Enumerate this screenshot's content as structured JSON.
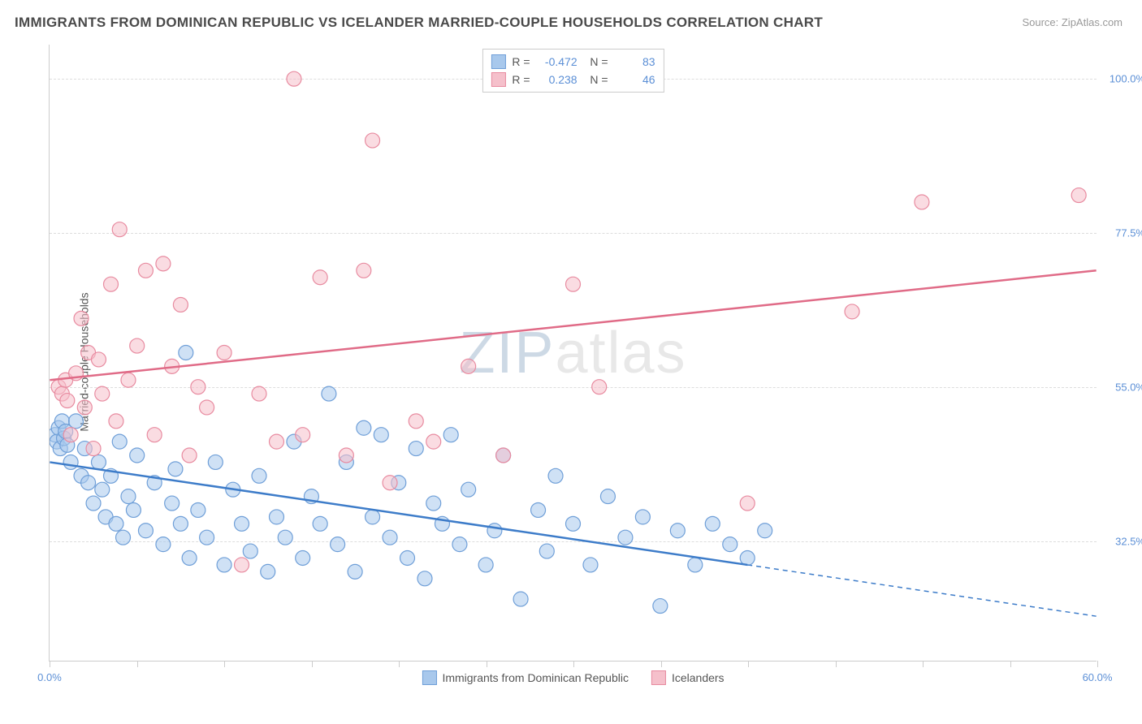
{
  "title": "IMMIGRANTS FROM DOMINICAN REPUBLIC VS ICELANDER MARRIED-COUPLE HOUSEHOLDS CORRELATION CHART",
  "source": "Source: ZipAtlas.com",
  "watermark_a": "ZIP",
  "watermark_b": "atlas",
  "ylabel": "Married-couple Households",
  "chart": {
    "type": "scatter",
    "xlim": [
      0,
      60
    ],
    "ylim": [
      15,
      105
    ],
    "xticks": [
      0,
      5,
      10,
      15,
      20,
      25,
      30,
      35,
      40,
      45,
      50,
      55,
      60
    ],
    "xtick_labels": {
      "0": "0.0%",
      "60": "60.0%"
    },
    "yticks": [
      32.5,
      55.0,
      77.5,
      100.0
    ],
    "ytick_labels": [
      "32.5%",
      "55.0%",
      "77.5%",
      "100.0%"
    ],
    "background_color": "#ffffff",
    "grid_color": "#dddddd",
    "axis_color": "#cccccc",
    "title_color": "#4a4a4a",
    "label_color": "#555555",
    "tick_label_color": "#5b8fd6",
    "marker_radius": 9,
    "marker_opacity": 0.55,
    "line_width": 2.5,
    "series": [
      {
        "name": "Immigrants from Dominican Republic",
        "color_fill": "#a8c8ec",
        "color_stroke": "#6f9fd8",
        "line_color": "#3d7cc9",
        "R": "-0.472",
        "N": "83",
        "trend": {
          "x1": 0,
          "y1": 44,
          "x2": 40,
          "y2": 29,
          "ext_x2": 60,
          "ext_y2": 21.5
        },
        "points": [
          [
            0.3,
            48
          ],
          [
            0.4,
            47
          ],
          [
            0.5,
            49
          ],
          [
            0.6,
            46
          ],
          [
            0.7,
            50
          ],
          [
            0.8,
            47.5
          ],
          [
            0.9,
            48.5
          ],
          [
            1.0,
            46.5
          ],
          [
            1.2,
            44
          ],
          [
            1.5,
            50
          ],
          [
            1.8,
            42
          ],
          [
            2.0,
            46
          ],
          [
            2.2,
            41
          ],
          [
            2.5,
            38
          ],
          [
            2.8,
            44
          ],
          [
            3.0,
            40
          ],
          [
            3.2,
            36
          ],
          [
            3.5,
            42
          ],
          [
            3.8,
            35
          ],
          [
            4.0,
            47
          ],
          [
            4.2,
            33
          ],
          [
            4.5,
            39
          ],
          [
            4.8,
            37
          ],
          [
            5.0,
            45
          ],
          [
            5.5,
            34
          ],
          [
            6.0,
            41
          ],
          [
            6.5,
            32
          ],
          [
            7.0,
            38
          ],
          [
            7.2,
            43
          ],
          [
            7.5,
            35
          ],
          [
            7.8,
            60
          ],
          [
            8.0,
            30
          ],
          [
            8.5,
            37
          ],
          [
            9.0,
            33
          ],
          [
            9.5,
            44
          ],
          [
            10.0,
            29
          ],
          [
            10.5,
            40
          ],
          [
            11.0,
            35
          ],
          [
            11.5,
            31
          ],
          [
            12.0,
            42
          ],
          [
            12.5,
            28
          ],
          [
            13.0,
            36
          ],
          [
            13.5,
            33
          ],
          [
            14.0,
            47
          ],
          [
            14.5,
            30
          ],
          [
            15.0,
            39
          ],
          [
            15.5,
            35
          ],
          [
            16.0,
            54
          ],
          [
            16.5,
            32
          ],
          [
            17.0,
            44
          ],
          [
            17.5,
            28
          ],
          [
            18.0,
            49
          ],
          [
            18.5,
            36
          ],
          [
            19.0,
            48
          ],
          [
            19.5,
            33
          ],
          [
            20.0,
            41
          ],
          [
            20.5,
            30
          ],
          [
            21.0,
            46
          ],
          [
            21.5,
            27
          ],
          [
            22.0,
            38
          ],
          [
            22.5,
            35
          ],
          [
            23.0,
            48
          ],
          [
            23.5,
            32
          ],
          [
            24.0,
            40
          ],
          [
            25.0,
            29
          ],
          [
            25.5,
            34
          ],
          [
            26.0,
            45
          ],
          [
            27.0,
            24
          ],
          [
            28.0,
            37
          ],
          [
            28.5,
            31
          ],
          [
            29.0,
            42
          ],
          [
            30.0,
            35
          ],
          [
            31.0,
            29
          ],
          [
            32.0,
            39
          ],
          [
            33.0,
            33
          ],
          [
            34.0,
            36
          ],
          [
            35.0,
            23
          ],
          [
            36.0,
            34
          ],
          [
            37.0,
            29
          ],
          [
            38.0,
            35
          ],
          [
            39.0,
            32
          ],
          [
            40.0,
            30
          ],
          [
            41.0,
            34
          ]
        ]
      },
      {
        "name": "Icelanders",
        "color_fill": "#f5c0cb",
        "color_stroke": "#e88ba0",
        "line_color": "#e06b87",
        "R": "0.238",
        "N": "46",
        "trend": {
          "x1": 0,
          "y1": 56,
          "x2": 60,
          "y2": 72
        },
        "points": [
          [
            0.5,
            55
          ],
          [
            0.7,
            54
          ],
          [
            0.9,
            56
          ],
          [
            1.0,
            53
          ],
          [
            1.2,
            48
          ],
          [
            1.5,
            57
          ],
          [
            1.8,
            65
          ],
          [
            2.0,
            52
          ],
          [
            2.2,
            60
          ],
          [
            2.5,
            46
          ],
          [
            2.8,
            59
          ],
          [
            3.0,
            54
          ],
          [
            3.5,
            70
          ],
          [
            3.8,
            50
          ],
          [
            4.0,
            78
          ],
          [
            4.5,
            56
          ],
          [
            5.0,
            61
          ],
          [
            5.5,
            72
          ],
          [
            6.0,
            48
          ],
          [
            6.5,
            73
          ],
          [
            7.0,
            58
          ],
          [
            7.5,
            67
          ],
          [
            8.0,
            45
          ],
          [
            8.5,
            55
          ],
          [
            9.0,
            52
          ],
          [
            10.0,
            60
          ],
          [
            11.0,
            29
          ],
          [
            12.0,
            54
          ],
          [
            13.0,
            47
          ],
          [
            14.0,
            100
          ],
          [
            14.5,
            48
          ],
          [
            15.5,
            71
          ],
          [
            17.0,
            45
          ],
          [
            18.0,
            72
          ],
          [
            18.5,
            91
          ],
          [
            19.5,
            41
          ],
          [
            21.0,
            50
          ],
          [
            22.0,
            47
          ],
          [
            24.0,
            58
          ],
          [
            26.0,
            45
          ],
          [
            30.0,
            70
          ],
          [
            31.5,
            55
          ],
          [
            40.0,
            38
          ],
          [
            46.0,
            66
          ],
          [
            50.0,
            82
          ],
          [
            59.0,
            83
          ]
        ]
      }
    ]
  },
  "legend_bottom": [
    {
      "label": "Immigrants from Dominican Republic",
      "fill": "#a8c8ec",
      "stroke": "#6f9fd8"
    },
    {
      "label": "Icelanders",
      "fill": "#f5c0cb",
      "stroke": "#e88ba0"
    }
  ]
}
